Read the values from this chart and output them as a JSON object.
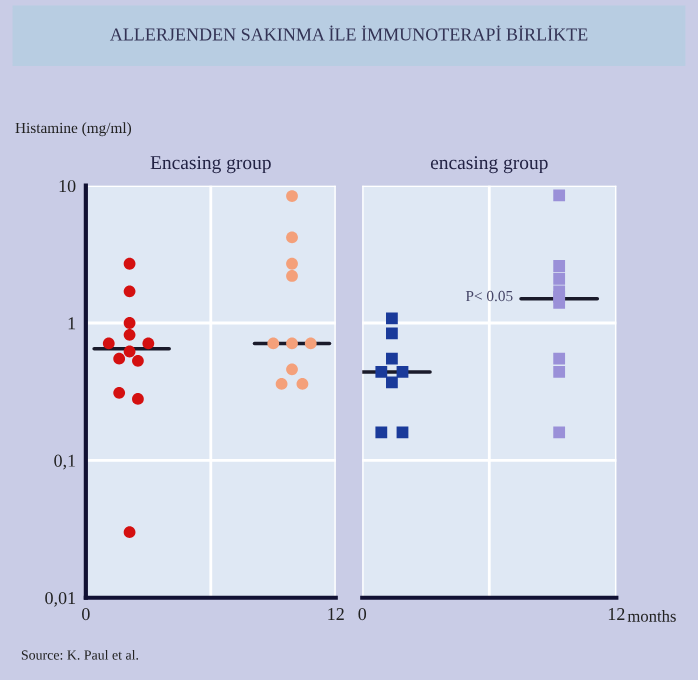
{
  "chart_data": [
    {
      "type": "scatter",
      "title": "Encasing group",
      "ylabel": "Histamine (mg/ml)",
      "log": "y",
      "xlim": [
        0,
        12
      ],
      "xticks": [
        0,
        {
          "value": 6,
          "label": null
        },
        12
      ],
      "ylim": [
        0.01,
        10
      ],
      "yticks": [
        {
          "value": 0.01,
          "label": "0,01"
        },
        {
          "value": 0.1,
          "label": "0,1"
        },
        1,
        10
      ],
      "grid": true,
      "annotations": [
        "ALLERJENDEN SAKINMA İLE İMMUNOTERAPİ BİRLİKTE",
        "Source: K. Paul et al."
      ],
      "series": [
        {
          "marker": "circle",
          "color": "#d41010",
          "x": [
            2.1,
            2.1,
            2.1,
            2.1,
            1.1,
            3.0,
            2.1,
            1.6,
            2.5,
            1.6,
            2.5,
            2.1
          ],
          "values": [
            2.7,
            1.7,
            1.0,
            0.82,
            0.71,
            0.71,
            0.62,
            0.55,
            0.53,
            0.31,
            0.28,
            0.03
          ]
        },
        {
          "marker": "circle",
          "color": "#f4a07a",
          "x": [
            9.9,
            9.9,
            9.9,
            9.9,
            9.0,
            9.9,
            10.8,
            9.9,
            9.4,
            10.4
          ],
          "values": [
            8.4,
            4.2,
            2.7,
            2.2,
            0.71,
            0.71,
            0.71,
            0.46,
            0.36,
            0.36
          ]
        },
        {
          "type": "line",
          "marker": "none",
          "color": "#1a1a2a",
          "x": [
            0.4,
            4.0
          ],
          "values": [
            0.65,
            0.65
          ]
        },
        {
          "type": "line",
          "marker": "none",
          "color": "#1a1a2a",
          "x": [
            8.1,
            11.7
          ],
          "values": [
            0.71,
            0.71
          ]
        }
      ]
    },
    {
      "type": "scatter",
      "title": "encasing group",
      "xlabel": "months",
      "log": "y",
      "xlim": [
        0,
        12
      ],
      "xticks": [
        0,
        {
          "value": 6,
          "label": null
        },
        12
      ],
      "ylim": [
        0.01,
        10
      ],
      "yticks": [
        0.01,
        0.1,
        1,
        10
      ],
      "tick_labels": "x",
      "grid": true,
      "annotations": [
        "P< 0.05"
      ],
      "series": [
        {
          "marker": "square",
          "color": "#1a3a9a",
          "x": [
            1.4,
            1.4,
            1.4,
            0.9,
            1.9,
            1.4,
            0.9,
            1.9
          ],
          "values": [
            1.08,
            0.84,
            0.55,
            0.44,
            0.44,
            0.37,
            0.16,
            0.16
          ]
        },
        {
          "marker": "square",
          "color": "#9a90d8",
          "x": [
            9.3,
            9.3,
            9.3,
            9.3,
            9.3,
            9.3,
            9.3,
            9.3,
            9.3
          ],
          "values": [
            8.5,
            2.6,
            2.1,
            1.7,
            1.55,
            1.4,
            0.55,
            0.44,
            0.16
          ]
        },
        {
          "type": "line",
          "marker": "none",
          "color": "#1a1a2a",
          "x": [
            0,
            3.2
          ],
          "values": [
            0.44,
            0.44
          ]
        },
        {
          "type": "line",
          "marker": "none",
          "color": "#1a1a2a",
          "x": [
            7.5,
            11.1
          ],
          "values": [
            1.5,
            1.5
          ]
        }
      ]
    }
  ]
}
